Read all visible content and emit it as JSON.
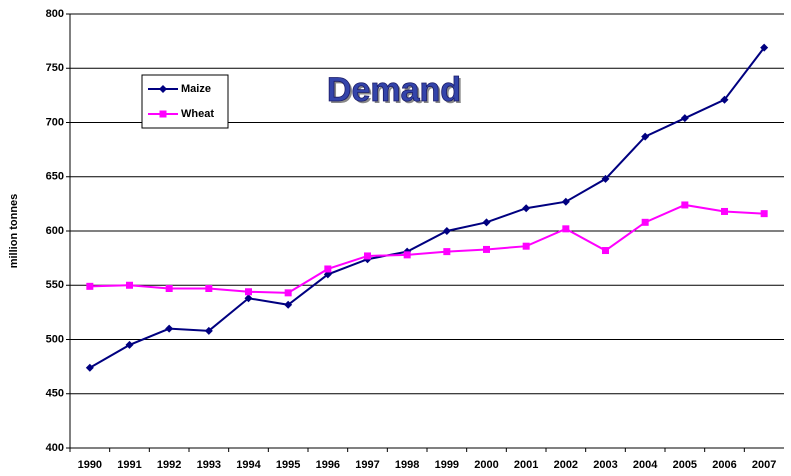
{
  "chart_data": {
    "type": "line",
    "title": "Demand",
    "y_label": "million tonnes",
    "categories": [
      "1990",
      "1991",
      "1992",
      "1993",
      "1994",
      "1995",
      "1996",
      "1997",
      "1998",
      "1999",
      "2000",
      "2001",
      "2002",
      "2003",
      "2004",
      "2005",
      "2006",
      "2007"
    ],
    "series": [
      {
        "name": "Maize",
        "color": "#000080",
        "marker": "diamond",
        "values": [
          474,
          495,
          510,
          508,
          538,
          532,
          560,
          574,
          581,
          600,
          608,
          621,
          627,
          648,
          687,
          704,
          721,
          769
        ]
      },
      {
        "name": "Wheat",
        "color": "#ff00ff",
        "marker": "square",
        "values": [
          549,
          550,
          547,
          547,
          544,
          543,
          565,
          577,
          578,
          581,
          583,
          586,
          602,
          582,
          608,
          624,
          618,
          616
        ]
      }
    ],
    "ylim": [
      400,
      800
    ],
    "yticks": [
      400,
      450,
      500,
      550,
      600,
      650,
      700,
      750,
      800
    ],
    "grid": true,
    "legend": "upper left"
  }
}
